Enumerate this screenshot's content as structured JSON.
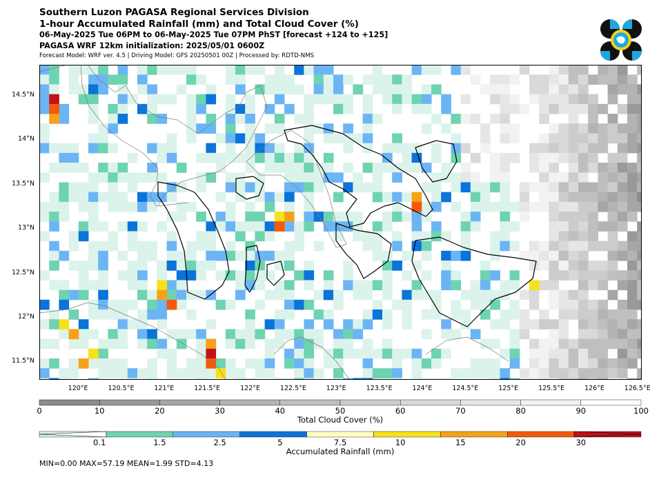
{
  "header": {
    "line1": "Southern Luzon PAGASA Regional Services Division",
    "line2": "1-hour Accumulated Rainfall (mm) and Total Cloud Cover (%)",
    "line3": "06-May-2025 Tue 06PM to 06-May-2025 Tue 07PM PhST [forecast +124 to +125]",
    "line4": "PAGASA WRF 12km initialization: 2025/05/01 0600Z",
    "line5": "Forecast Model: WRF ver. 4.5 | Driving Model: GFS 20250501 00Z | Processed by: RDTD-NMS"
  },
  "map": {
    "lon_range": [
      119.55,
      126.55
    ],
    "lat_range": [
      11.3,
      14.85
    ],
    "lat_ticks": [
      "14.5°N",
      "14°N",
      "13.5°N",
      "13°N",
      "12.5°N",
      "12°N",
      "11.5°N"
    ],
    "lat_values": [
      14.5,
      14.0,
      13.5,
      13.0,
      12.5,
      12.0,
      11.5
    ],
    "lon_ticks": [
      "120°E",
      "120.5°E",
      "121°E",
      "121.5°E",
      "122°E",
      "122.5°E",
      "123°E",
      "123.5°E",
      "124°E",
      "124.5°E",
      "125°E",
      "125.5°E",
      "126°E",
      "126.5°E"
    ],
    "lon_values": [
      120.0,
      120.5,
      121.0,
      121.5,
      122.0,
      122.5,
      123.0,
      123.5,
      124.0,
      124.5,
      125.0,
      125.5,
      126.0,
      126.5
    ]
  },
  "cloud_colorbar": {
    "label": "Total Cloud Cover (%)",
    "ticks": [
      "0",
      "10",
      "20",
      "30",
      "40",
      "50",
      "60",
      "70",
      "80",
      "90",
      "100"
    ],
    "colors": [
      "#8c8c8c",
      "#999999",
      "#a6a6a6",
      "#b3b3b3",
      "#bfbfbf",
      "#cccccc",
      "#d9d9d9",
      "#e6e6e6",
      "#f2f2f2",
      "#ffffff"
    ]
  },
  "rain_colorbar": {
    "label": "Accumulated Rainfall (mm)",
    "ticks": [
      "0.1",
      "1.5",
      "2.5",
      "5",
      "7.5",
      "10",
      "15",
      "20",
      "30"
    ],
    "colors": [
      "#dcf3ec",
      "#6ed3b0",
      "#6cb5f5",
      "#0a74d9",
      "#ffffc0",
      "#f7e11a",
      "#f7a11a",
      "#f45a0a",
      "#c0121a"
    ],
    "under_color": "#ffffff"
  },
  "stats": "MIN=0.00   MAX=57.19   MEAN=1.99   STD=4.13"
}
